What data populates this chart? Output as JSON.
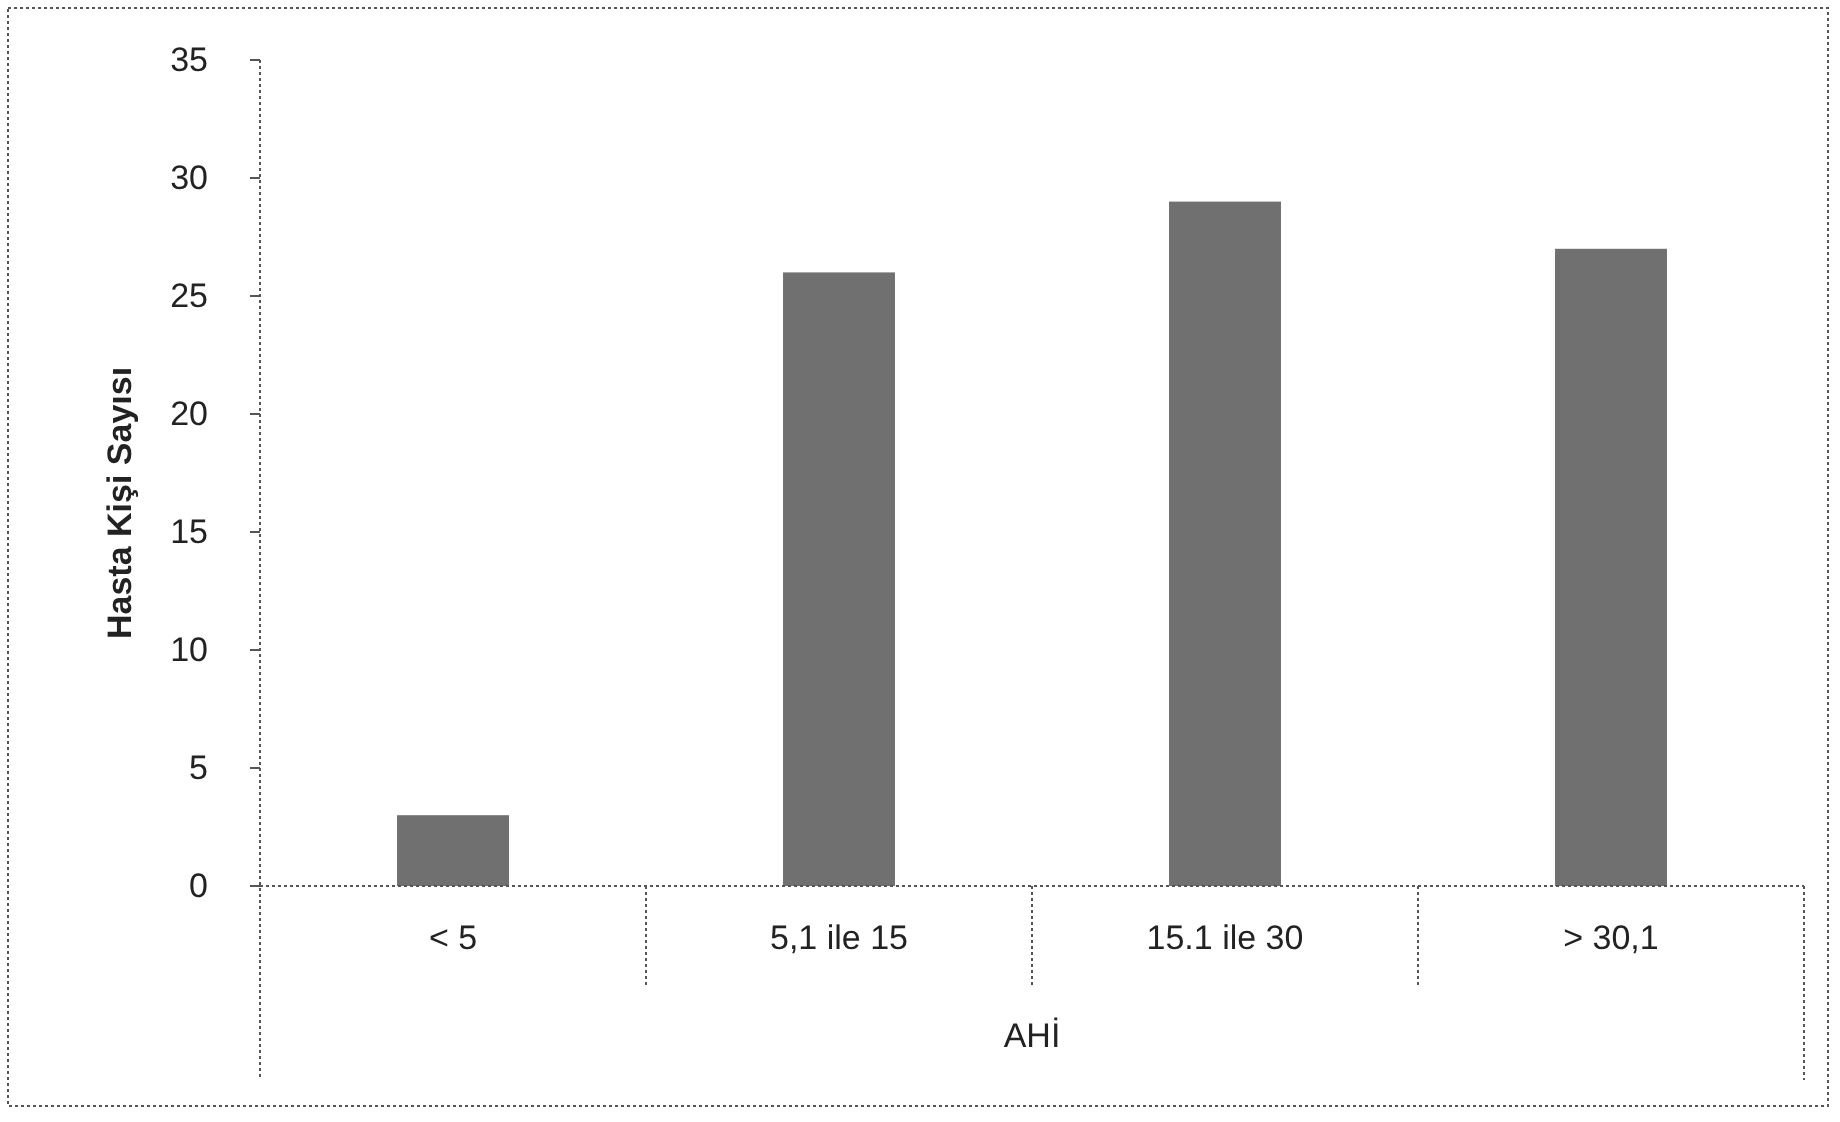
{
  "chart_data": {
    "type": "bar",
    "xlabel": "AHİ",
    "ylabel": "Hasta Kişi Sayısı",
    "categories": [
      "< 5",
      "5,1 ile 15",
      "15.1 ile 30",
      "> 30,1"
    ],
    "values": [
      3,
      26,
      29,
      27
    ],
    "color": "#707070",
    "ylim": [
      0,
      35
    ],
    "yticks": [
      0,
      5,
      10,
      15,
      20,
      25,
      30,
      35
    ],
    "grid": false
  }
}
